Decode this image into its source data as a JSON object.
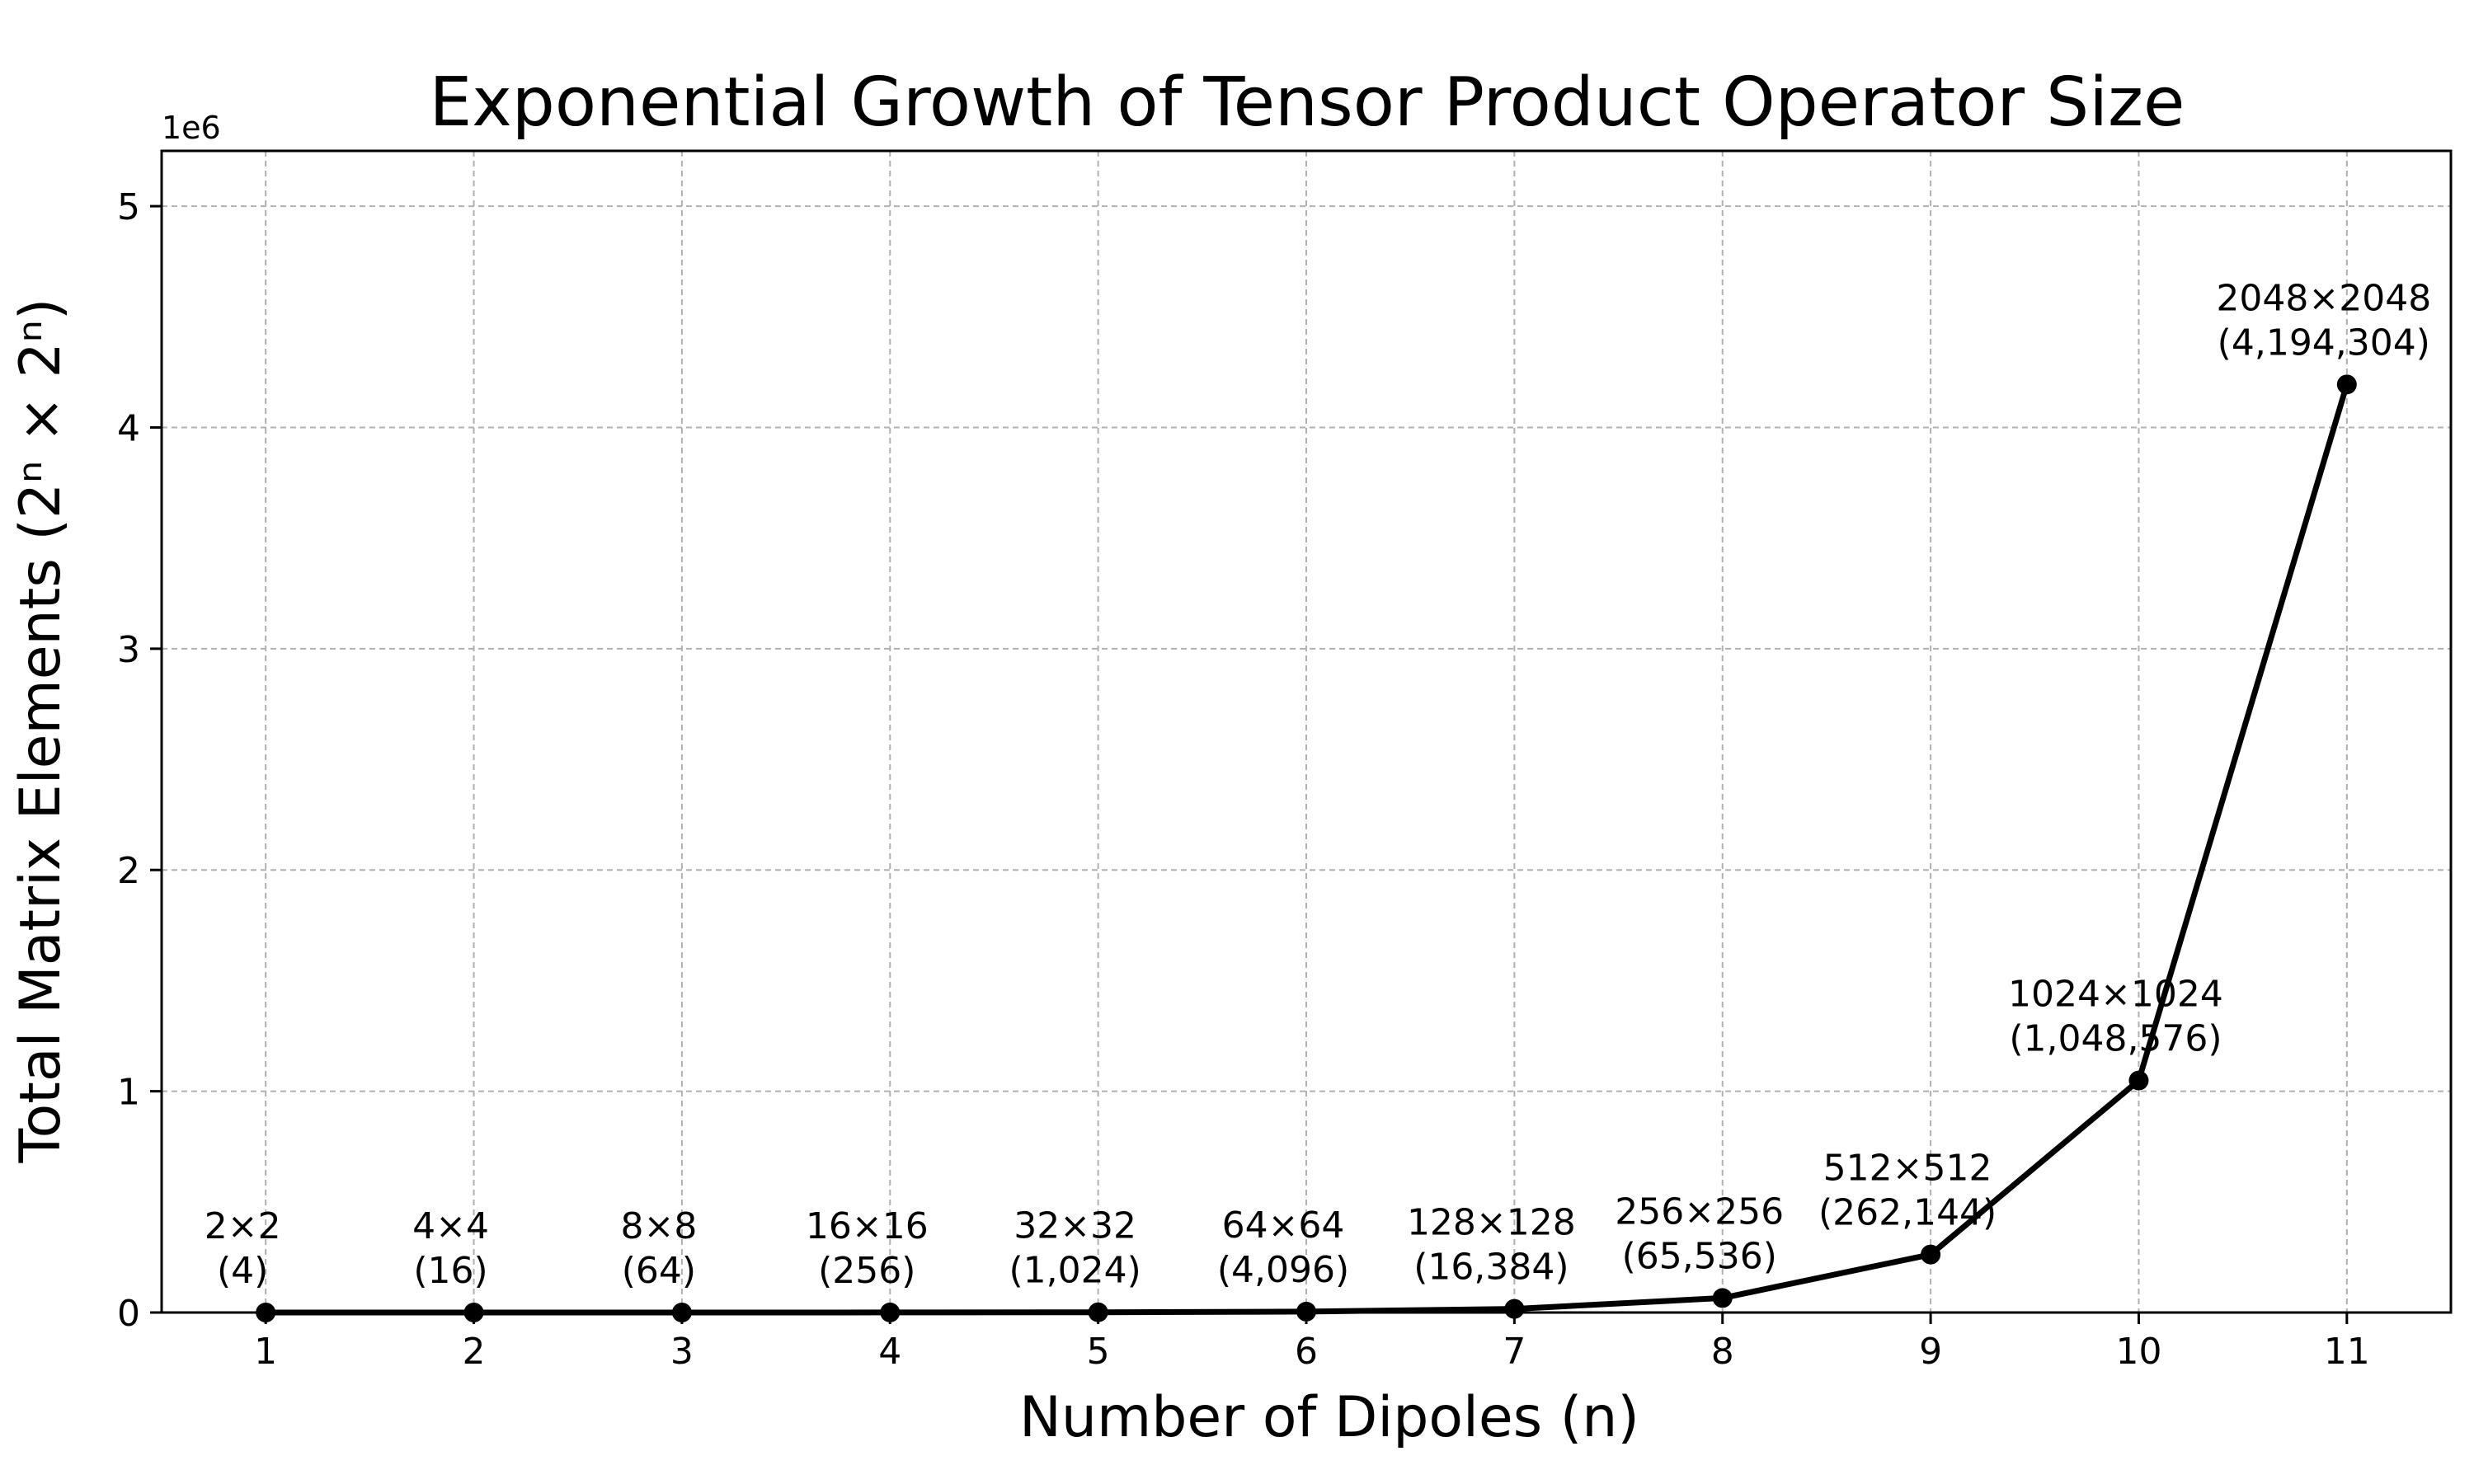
{
  "chart_data": {
    "type": "line",
    "title": "Exponential Growth of Tensor Product Operator Size",
    "xlabel": "Number of Dipoles (n)",
    "ylabel": "Total Matrix Elements (2ⁿ × 2ⁿ)",
    "y_offset_label": "1e6",
    "x": [
      1,
      2,
      3,
      4,
      5,
      6,
      7,
      8,
      9,
      10,
      11
    ],
    "values": [
      4,
      16,
      64,
      256,
      1024,
      4096,
      16384,
      65536,
      262144,
      1048576,
      4194304
    ],
    "annotations": [
      {
        "line1": "2×2",
        "line2": "(4)"
      },
      {
        "line1": "4×4",
        "line2": "(16)"
      },
      {
        "line1": "8×8",
        "line2": "(64)"
      },
      {
        "line1": "16×16",
        "line2": "(256)"
      },
      {
        "line1": "32×32",
        "line2": "(1,024)"
      },
      {
        "line1": "64×64",
        "line2": "(4,096)"
      },
      {
        "line1": "128×128",
        "line2": "(16,384)"
      },
      {
        "line1": "256×256",
        "line2": "(65,536)"
      },
      {
        "line1": "512×512",
        "line2": "(262,144)"
      },
      {
        "line1": "1024×1024",
        "line2": "(1,048,576)"
      },
      {
        "line1": "2048×2048",
        "line2": "(4,194,304)"
      }
    ],
    "xticks": [
      "1",
      "2",
      "3",
      "4",
      "5",
      "6",
      "7",
      "8",
      "9",
      "10",
      "11"
    ],
    "yticks": [
      {
        "value": 0,
        "label": "0"
      },
      {
        "value": 1000000,
        "label": "1"
      },
      {
        "value": 2000000,
        "label": "2"
      },
      {
        "value": 3000000,
        "label": "3"
      },
      {
        "value": 4000000,
        "label": "4"
      },
      {
        "value": 5000000,
        "label": "5"
      }
    ],
    "xlim": [
      0.5,
      11.5
    ],
    "ylim": [
      0,
      5250000
    ],
    "grid": true,
    "colors": {
      "line": "#000000",
      "grid": "#b0b0b0"
    }
  }
}
